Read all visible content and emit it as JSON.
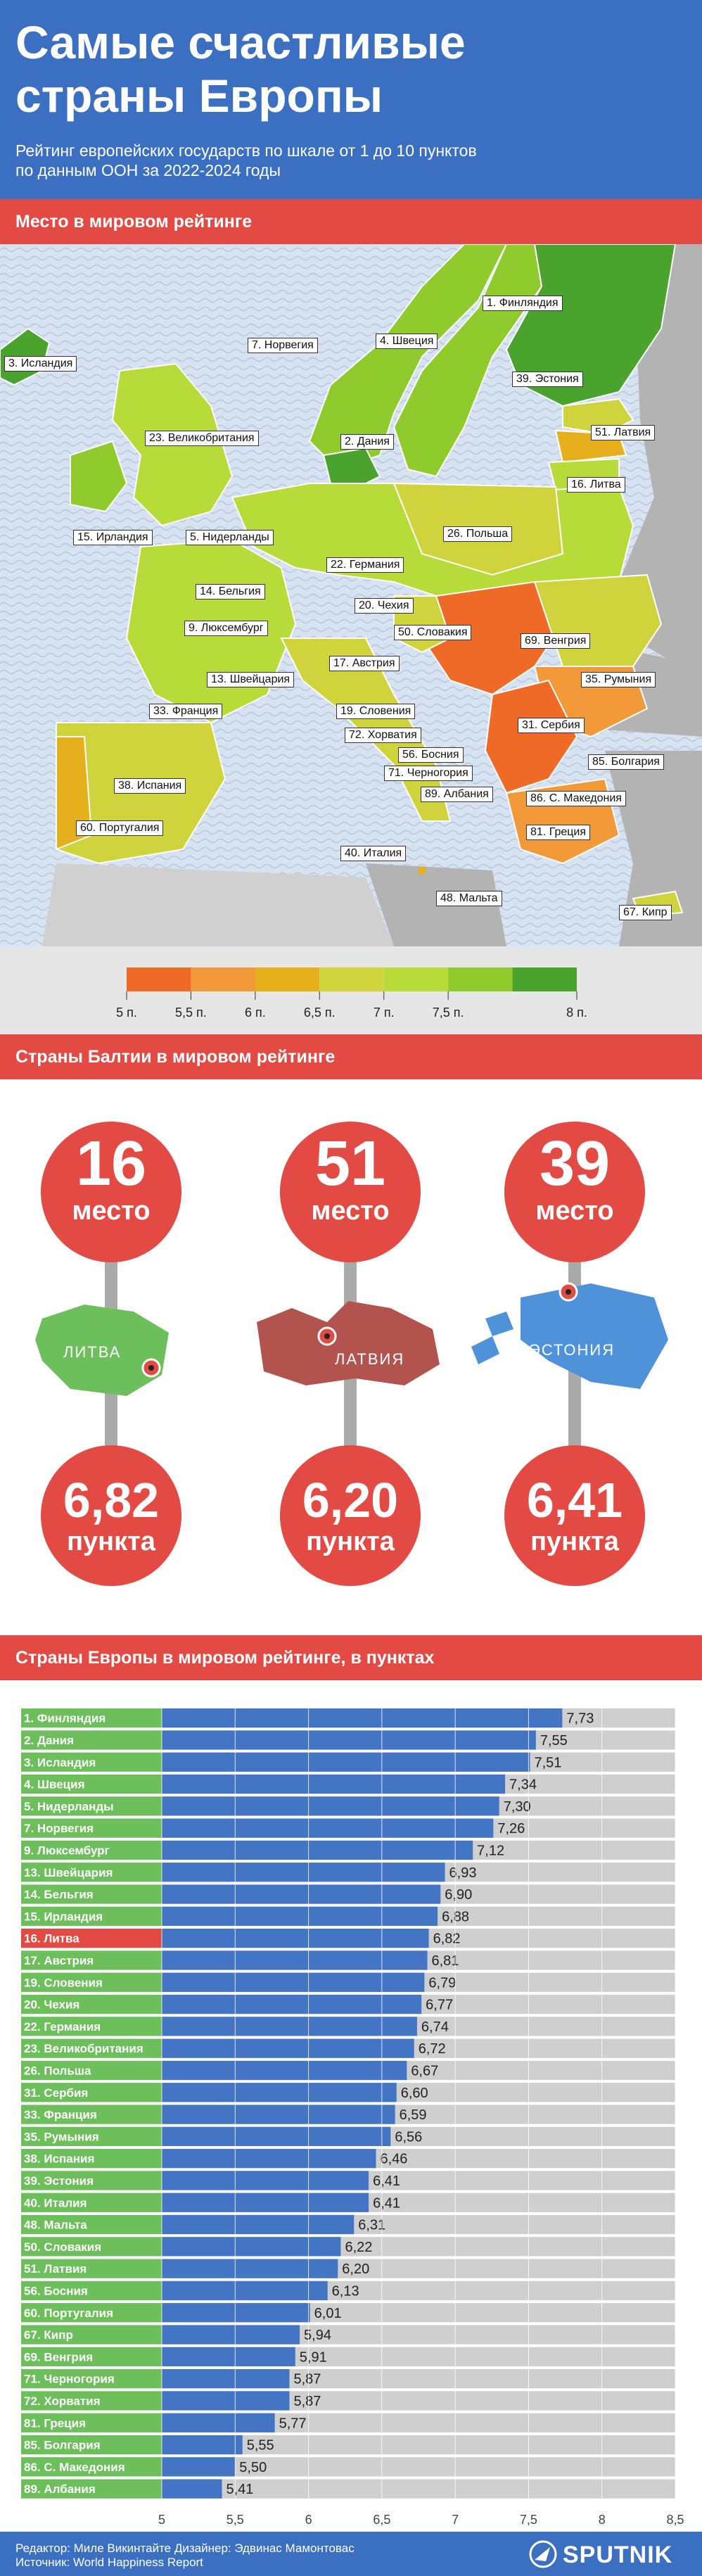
{
  "header": {
    "title_line1": "Самые счастливые",
    "title_line2": "страны Европы",
    "subtitle_line1": "Рейтинг европейских  государств по шкале от 1 до 10 пунктов",
    "subtitle_line2": "по данным ООН за 2022-2024 годы"
  },
  "sections": {
    "map": "Место в мировом рейтинге",
    "baltic": "Страны Балтии в мировом рейтинге",
    "bars": "Страны Европы в мировом рейтинге, в пунктах"
  },
  "map_labels": [
    "1. Финляндия",
    "3. Исландия",
    "7. Норвегия",
    "4. Швеция",
    "39. Эстония",
    "23. Великобритания",
    "2. Дания",
    "51. Латвия",
    "16. Литва",
    "15. Ирландия",
    "5. Нидерланды",
    "26. Польша",
    "22. Германия",
    "14. Бельгия",
    "20. Чехия",
    "9. Люксембург",
    "50. Словакия",
    "69. Венгрия",
    "13. Швейцария",
    "17. Австрия",
    "35. Румыния",
    "33. Франция",
    "19. Словения",
    "31. Сербия",
    "72. Хорватия",
    "56. Босния",
    "85. Болгария",
    "71. Черногория",
    "89. Албания",
    "38. Испания",
    "86. С. Македония",
    "60. Португалия",
    "81. Греция",
    "40. Италия",
    "48. Мальта",
    "67. Кипр"
  ],
  "legend": {
    "colors": [
      "#ef6a26",
      "#f29a3a",
      "#e6b01c",
      "#cfd43c",
      "#b7dc3a",
      "#8fcb2c",
      "#4aa32c"
    ],
    "ticks": [
      "5 п.",
      "5,5 п.",
      "6 п.",
      "6,5 п.",
      "7 п.",
      "7,5 п.",
      "8 п."
    ]
  },
  "baltic": [
    {
      "rank": "16",
      "rank_word": "место",
      "score": "6,82",
      "score_word": "пункта",
      "country": "ЛИТВА",
      "color": "#6dbf5b"
    },
    {
      "rank": "51",
      "rank_word": "место",
      "score": "6,20",
      "score_word": "пункта",
      "country": "ЛАТВИЯ",
      "color": "#b3534d"
    },
    {
      "rank": "39",
      "rank_word": "место",
      "score": "6,41",
      "score_word": "пункта",
      "country": "ЭСТОНИЯ",
      "color": "#4e93d9"
    }
  ],
  "chart_data": {
    "type": "bar",
    "orientation": "horizontal",
    "categories": [
      "1.  Финляндия",
      "2.  Дания",
      "3.  Исландия",
      "4.  Швеция",
      "5.  Нидерланды",
      "7.  Норвегия",
      "9.  Люксембург",
      "13. Швейцария",
      "14. Бельгия",
      "15. Ирландия",
      "16. Литва",
      "17. Австрия",
      "19. Словения",
      "20. Чехия",
      "22. Германия",
      "23. Великобритания",
      "26. Польша",
      "31. Сербия",
      "33. Франция",
      "35. Румыния",
      "38. Испания",
      "39. Эстония",
      "40. Италия",
      "48. Мальта",
      "50. Словакия",
      "51. Латвия",
      "56. Босния",
      "60. Португалия",
      "67. Кипр",
      "69. Венгрия",
      "71. Черногория",
      "72. Хорватия",
      "81. Греция",
      "85. Болгария",
      "86. С. Македония",
      "89. Албания"
    ],
    "values": [
      7.73,
      7.55,
      7.51,
      7.34,
      7.3,
      7.26,
      7.12,
      6.93,
      6.9,
      6.88,
      6.82,
      6.81,
      6.79,
      6.77,
      6.74,
      6.72,
      6.67,
      6.6,
      6.59,
      6.56,
      6.46,
      6.41,
      6.41,
      6.31,
      6.22,
      6.2,
      6.13,
      6.01,
      5.94,
      5.91,
      5.87,
      5.87,
      5.77,
      5.55,
      5.5,
      5.41
    ],
    "value_labels": [
      "7,73",
      "7,55",
      "7,51",
      "7,34",
      "7,30",
      "7,26",
      "7,12",
      "6,93",
      "6,90",
      "6,88",
      "6,82",
      "6,81",
      "6,79",
      "6,77",
      "6,74",
      "6,72",
      "6,67",
      "6,60",
      "6,59",
      "6,56",
      "6,46",
      "6,41",
      "6,41",
      "6,31",
      "6,22",
      "6,20",
      "6,13",
      "6,01",
      "5,94",
      "5,91",
      "5,87",
      "5,87",
      "5,77",
      "5,55",
      "5,50",
      "5,41"
    ],
    "highlight_index": 10,
    "xlim": [
      5,
      8.5
    ],
    "xticks": [
      "5",
      "5,5",
      "6",
      "6,5",
      "7",
      "7,5",
      "8",
      "8,5"
    ],
    "colors": {
      "bar": "#4475c4",
      "track": "#cfcfcf",
      "label_bg": "#6dbf5b",
      "highlight": "#e24a43"
    }
  },
  "footer": {
    "credits_line1": "Редактор: Миле Викинтайте  Дизайнер: Эдвинас Мамонтовас",
    "credits_line2": "Источник: World Happiness Report",
    "brand": "SPUTNIK"
  }
}
